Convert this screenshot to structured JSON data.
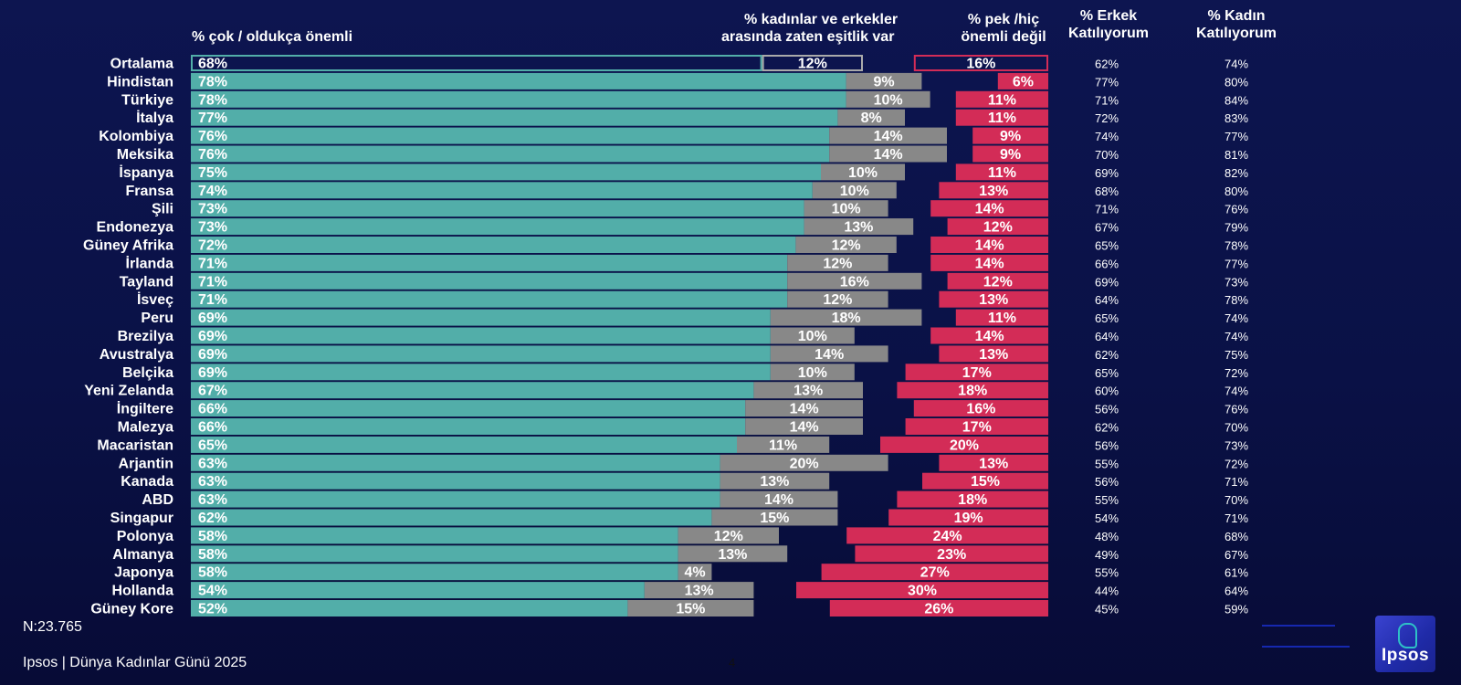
{
  "headers": {
    "agree": "% çok / oldukça önemli",
    "equal_l1": "% kadınlar ve erkekler",
    "equal_l2": "arasında zaten eşitlik var",
    "notimp_l1": "% pek /hiç",
    "notimp_l2": "önemli değil",
    "men_l1": "% Erkek",
    "men_l2": "Katılıyorum",
    "women_l1": "% Kadın",
    "women_l2": "Katılıyorum"
  },
  "colors": {
    "agree": "#52aea9",
    "equal": "#888888",
    "notimp": "#d32c57",
    "background": "#0b1248",
    "average_outline_agree": "#52aea9",
    "average_outline_equal": "#aaaaaa",
    "average_outline_notimp": "#d32c57"
  },
  "chart_data": {
    "type": "bar",
    "orientation": "horizontal",
    "categories": [
      "Ortalama",
      "Hindistan",
      "Türkiye",
      "İtalya",
      "Kolombiya",
      "Meksika",
      "İspanya",
      "Fransa",
      "Şili",
      "Endonezya",
      "Güney Afrika",
      "İrlanda",
      "Tayland",
      "İsveç",
      "Peru",
      "Brezilya",
      "Avustralya",
      "Belçika",
      "Yeni Zelanda",
      "İngiltere",
      "Malezya",
      "Macaristan",
      "Arjantin",
      "Kanada",
      "ABD",
      "Singapur",
      "Polonya",
      "Almanya",
      "Japonya",
      "Hollanda",
      "Güney Kore"
    ],
    "series": [
      {
        "name": "% çok / oldukça önemli",
        "values": [
          68,
          78,
          78,
          77,
          76,
          76,
          75,
          74,
          73,
          73,
          72,
          71,
          71,
          71,
          69,
          69,
          69,
          69,
          67,
          66,
          66,
          65,
          63,
          63,
          63,
          62,
          58,
          58,
          58,
          54,
          52
        ]
      },
      {
        "name": "% kadınlar ve erkekler arasında zaten eşitlik var",
        "values": [
          12,
          9,
          10,
          8,
          14,
          14,
          10,
          10,
          10,
          13,
          12,
          12,
          16,
          12,
          18,
          10,
          14,
          10,
          13,
          14,
          14,
          11,
          20,
          13,
          14,
          15,
          12,
          13,
          4,
          13,
          15
        ]
      },
      {
        "name": "% pek /hiç önemli değil",
        "values": [
          16,
          6,
          11,
          11,
          9,
          9,
          11,
          13,
          14,
          12,
          14,
          14,
          12,
          13,
          11,
          14,
          13,
          17,
          18,
          16,
          17,
          20,
          13,
          15,
          18,
          19,
          24,
          23,
          27,
          30,
          26
        ]
      },
      {
        "name": "% Erkek Katılıyorum",
        "values": [
          62,
          77,
          71,
          72,
          74,
          70,
          69,
          68,
          71,
          67,
          65,
          66,
          69,
          64,
          65,
          64,
          62,
          65,
          60,
          56,
          62,
          56,
          55,
          56,
          55,
          54,
          48,
          49,
          55,
          44,
          45
        ]
      },
      {
        "name": "% Kadın Katılıyorum",
        "values": [
          74,
          80,
          84,
          83,
          77,
          81,
          82,
          80,
          76,
          79,
          78,
          77,
          73,
          78,
          74,
          74,
          75,
          72,
          74,
          76,
          70,
          73,
          72,
          71,
          70,
          71,
          68,
          67,
          61,
          64,
          59
        ]
      }
    ]
  },
  "footer": {
    "n": "N:23.765",
    "source": "Ipsos | Dünya Kadınlar Günü 2025",
    "page": "4",
    "logo": "Ipsos"
  }
}
